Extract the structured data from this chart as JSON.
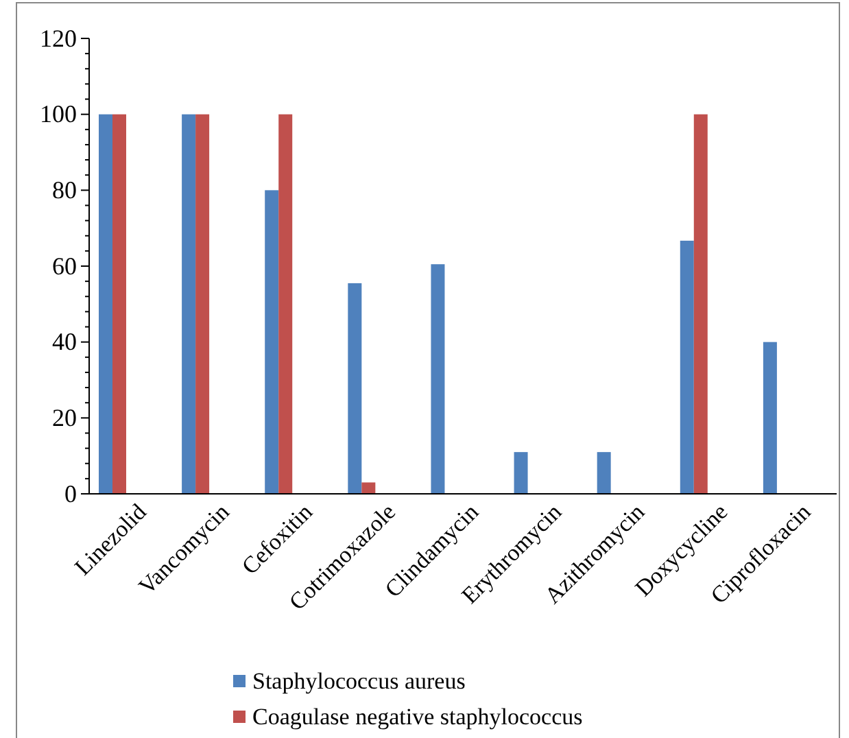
{
  "chart_data": {
    "type": "bar",
    "categories": [
      "Linezolid",
      "Vancomycin",
      "Cefoxitin",
      "Cotrimoxazole",
      "Clindamycin",
      "Erythromycin",
      "Azithromycin",
      "Doxycycline",
      "Ciprofloxacin"
    ],
    "series": [
      {
        "name": "Staphylococcus aureus",
        "color": "#4f81bd",
        "values": [
          100,
          100,
          80,
          55.5,
          60.5,
          11,
          11,
          66.7,
          40
        ]
      },
      {
        "name": "Coagulase negative staphylococcus",
        "color": "#c0504d",
        "values": [
          100,
          100,
          100,
          3,
          0,
          0,
          0,
          100,
          0
        ]
      }
    ],
    "ylim": [
      0,
      120
    ],
    "yticks": [
      0,
      20,
      40,
      60,
      80,
      100,
      120
    ],
    "grid": false,
    "legend": "bottom"
  }
}
